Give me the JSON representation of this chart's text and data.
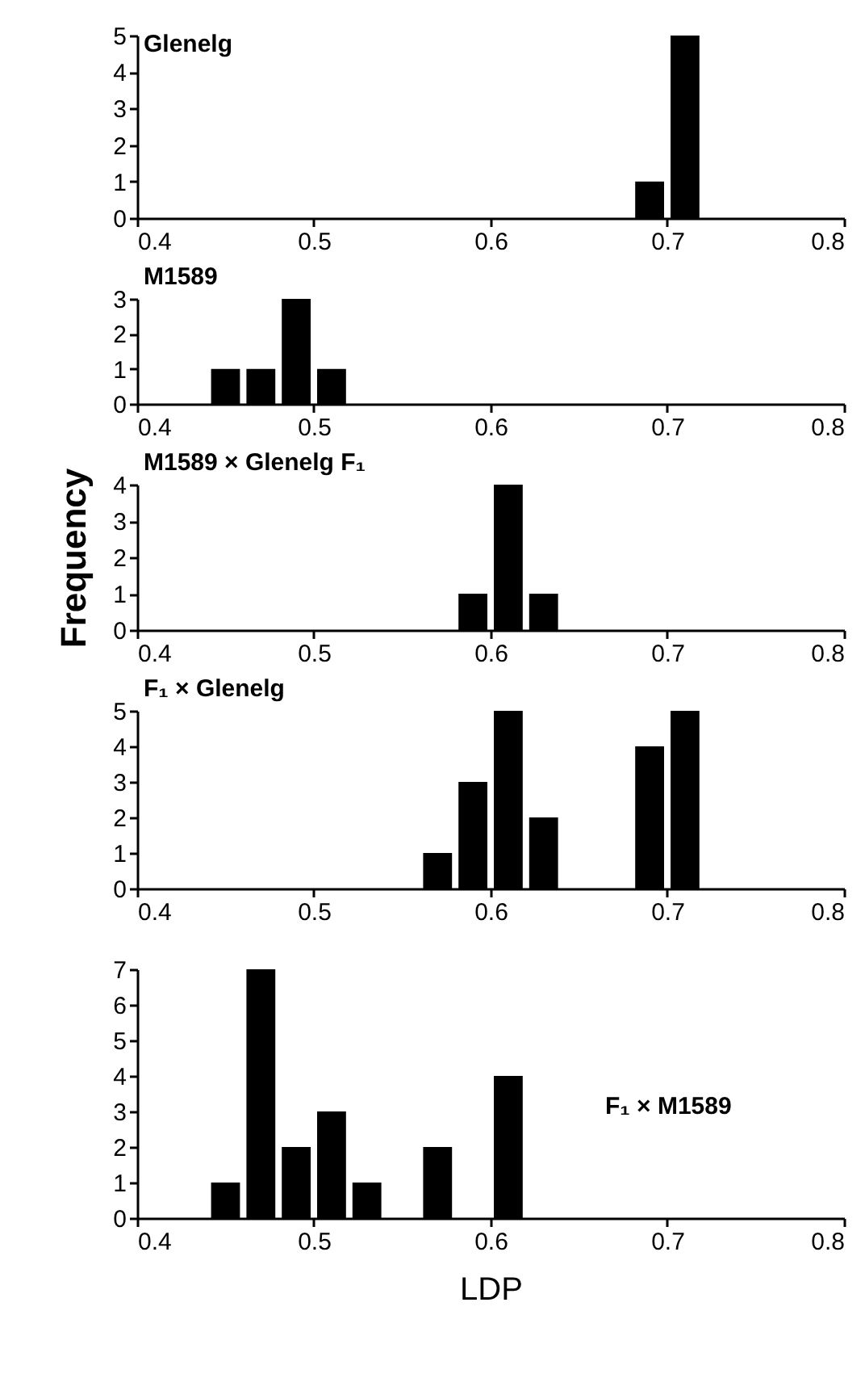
{
  "chart_data": [
    {
      "type": "histogram",
      "annotations": [
        "Glenelg"
      ],
      "bins": [
        0.68,
        0.7,
        0.72
      ],
      "values": [
        1,
        5
      ],
      "color": "#000000",
      "xlim": [
        0.4,
        0.8
      ],
      "xticks": [
        0.4,
        0.5,
        0.6,
        0.7,
        0.8
      ],
      "ylim": [
        0,
        5
      ],
      "yticks": [
        0,
        1,
        2,
        3,
        4,
        5
      ]
    },
    {
      "type": "histogram",
      "annotations": [
        "M1589"
      ],
      "bins": [
        0.44,
        0.46,
        0.48,
        0.5,
        0.52
      ],
      "values": [
        1,
        1,
        3,
        1
      ],
      "color": "#000000",
      "xlim": [
        0.4,
        0.8
      ],
      "xticks": [
        0.4,
        0.5,
        0.6,
        0.7,
        0.8
      ],
      "ylim": [
        0,
        3
      ],
      "yticks": [
        0,
        1,
        2,
        3
      ]
    },
    {
      "type": "histogram",
      "annotations": [
        "M1589 × Glenelg F₁"
      ],
      "ylabel": "Frequency",
      "bins": [
        0.58,
        0.6,
        0.62,
        0.64
      ],
      "values": [
        1,
        4,
        1
      ],
      "color": "#000000",
      "xlim": [
        0.4,
        0.8
      ],
      "xticks": [
        0.4,
        0.5,
        0.6,
        0.7,
        0.8
      ],
      "ylim": [
        0,
        4
      ],
      "yticks": [
        0,
        1,
        2,
        3,
        4
      ]
    },
    {
      "type": "histogram",
      "annotations": [
        "F₁ × Glenelg"
      ],
      "bins": [
        0.56,
        0.58,
        0.6,
        0.62,
        0.64,
        0.66,
        0.68,
        0.7,
        0.72
      ],
      "values": [
        1,
        3,
        5,
        2,
        0,
        0,
        4,
        5
      ],
      "color": "#000000",
      "xlim": [
        0.4,
        0.8
      ],
      "xticks": [
        0.4,
        0.5,
        0.6,
        0.7,
        0.8
      ],
      "ylim": [
        0,
        5
      ],
      "yticks": [
        0,
        1,
        2,
        3,
        4,
        5
      ]
    },
    {
      "type": "histogram",
      "annotations": [
        "F₁ × M1589"
      ],
      "xlabel": "LDP",
      "bins": [
        0.44,
        0.46,
        0.48,
        0.5,
        0.52,
        0.54,
        0.56,
        0.58,
        0.6,
        0.62
      ],
      "values": [
        1,
        7,
        2,
        3,
        1,
        0,
        2,
        0,
        4
      ],
      "color": "#000000",
      "xlim": [
        0.4,
        0.8
      ],
      "xticks": [
        0.4,
        0.5,
        0.6,
        0.7,
        0.8
      ],
      "ylim": [
        0,
        7
      ],
      "yticks": [
        0,
        1,
        2,
        3,
        4,
        5,
        6,
        7
      ]
    }
  ]
}
